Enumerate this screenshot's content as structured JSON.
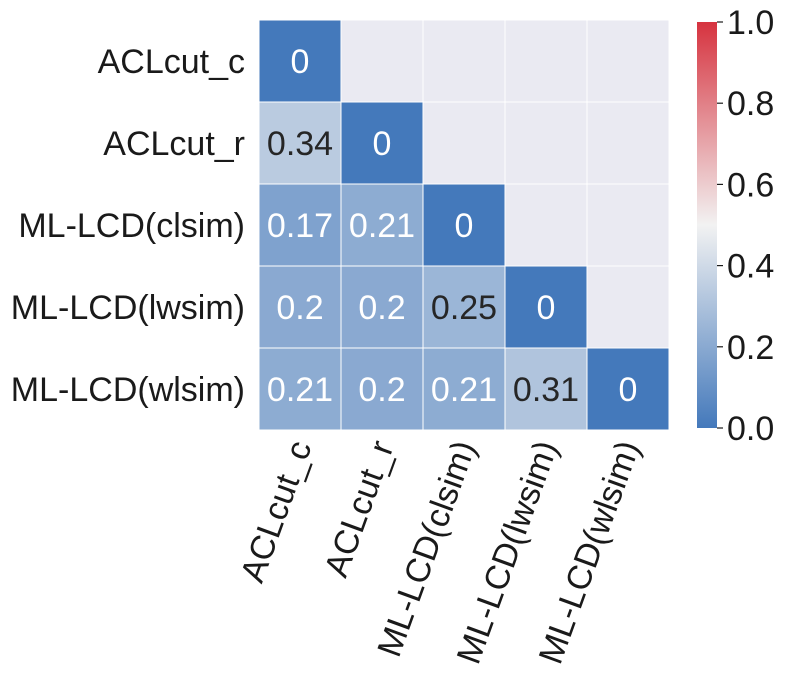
{
  "chart_data": {
    "type": "heatmap",
    "title": "",
    "xlabel": "",
    "ylabel": "",
    "rows": [
      "ACLcut_c",
      "ACLcut_r",
      "ML-LCD(clsim)",
      "ML-LCD(lwsim)",
      "ML-LCD(wlsim)"
    ],
    "columns": [
      "ACLcut_c",
      "ACLcut_r",
      "ML-LCD(clsim)",
      "ML-LCD(lwsim)",
      "ML-LCD(wlsim)"
    ],
    "values": [
      [
        0,
        null,
        null,
        null,
        null
      ],
      [
        0.34,
        0,
        null,
        null,
        null
      ],
      [
        0.17,
        0.21,
        0,
        null,
        null
      ],
      [
        0.2,
        0.2,
        0.25,
        0,
        null
      ],
      [
        0.21,
        0.2,
        0.21,
        0.31,
        0
      ]
    ],
    "value_labels": [
      [
        "0",
        "",
        "",
        "",
        ""
      ],
      [
        "0.34",
        "0",
        "",
        "",
        ""
      ],
      [
        "0.17",
        "0.21",
        "0",
        "",
        ""
      ],
      [
        "0.2",
        "0.2",
        "0.25",
        "0",
        ""
      ],
      [
        "0.21",
        "0.2",
        "0.21",
        "0.31",
        "0"
      ]
    ],
    "mask": "upper-triangle",
    "colorbar": {
      "range": [
        0.0,
        1.0
      ],
      "ticks": [
        0.0,
        0.2,
        0.4,
        0.6,
        0.8,
        1.0
      ],
      "tick_labels": [
        "0.0",
        "0.2",
        "0.4",
        "0.6",
        "0.8",
        "1.0"
      ],
      "colormap": "diverging blue-white-red",
      "low_color": "#4479bb",
      "mid_color": "#f2f2f2",
      "high_color": "#d6333f"
    },
    "masked_color": "#eaeaf2",
    "gridline_color": "#ffffff",
    "dark_text_color": "#262626",
    "light_text_color": "#ffffff",
    "x_tick_rotation": "-70 degrees"
  }
}
